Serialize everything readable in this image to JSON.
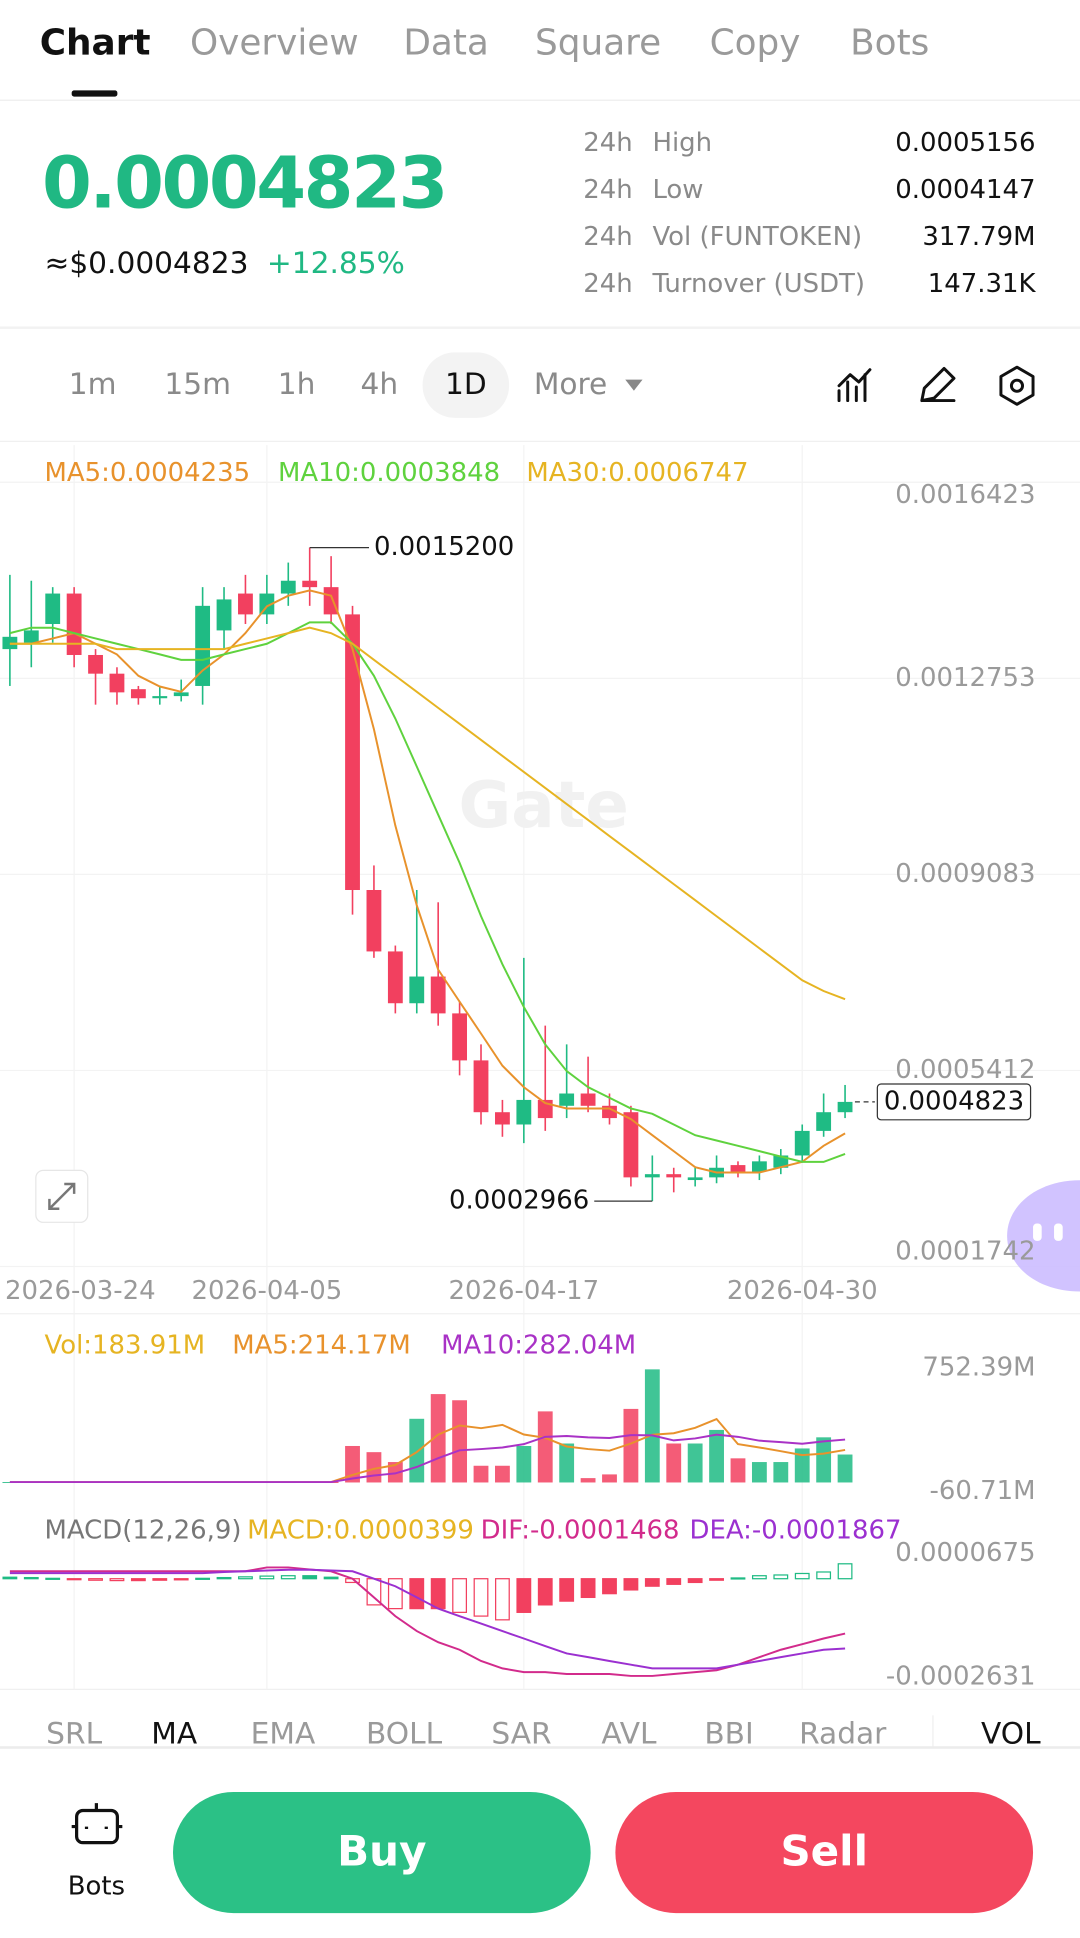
{
  "tabs": [
    "Chart",
    "Overview",
    "Data",
    "Square",
    "Copy",
    "Bots"
  ],
  "ticker": {
    "price": "0.0004823",
    "usd_price": "≈$0.0004823",
    "change": "+12.85%"
  },
  "stats": [
    {
      "period": "24h",
      "label": "High",
      "value": "0.0005156"
    },
    {
      "period": "24h",
      "label": "Low",
      "value": "0.0004147"
    },
    {
      "period": "24h",
      "label": "Vol (FUNTOKEN)",
      "value": "317.79M"
    },
    {
      "period": "24h",
      "label": "Turnover (USDT)",
      "value": "147.31K"
    }
  ],
  "intervals": [
    "1m",
    "15m",
    "1h",
    "4h",
    "1D"
  ],
  "interval_more": "More",
  "watermark": "Gate",
  "indicators": [
    "SRL",
    "MA",
    "EMA",
    "BOLL",
    "SAR",
    "AVL",
    "BBI",
    "Radar",
    "VOL"
  ],
  "bottom": {
    "bots": "Bots",
    "buy": "Buy",
    "sell": "Sell"
  },
  "chart_data": [
    {
      "type": "candlestick",
      "categories": [
        null,
        null,
        null,
        "2026-03-24",
        null,
        null,
        null,
        null,
        null,
        null,
        null,
        null,
        "2026-04-05",
        null,
        null,
        null,
        null,
        null,
        null,
        null,
        null,
        null,
        null,
        null,
        "2026-04-17",
        null,
        null,
        null,
        null,
        null,
        null,
        null,
        null,
        null,
        null,
        null,
        null,
        "2026-04-30",
        null,
        null
      ],
      "open": [
        0.00133,
        0.001342,
        0.001377,
        0.001434,
        0.001319,
        0.001284,
        0.001255,
        0.001238,
        0.001242,
        0.001261,
        0.001365,
        0.001434,
        0.001395,
        0.001434,
        0.001458,
        0.001446,
        0.001395,
        0.000879,
        0.000764,
        0.000667,
        0.000717,
        0.000648,
        0.00056,
        0.000463,
        0.00044,
        0.000486,
        0.000475,
        0.000498,
        0.000475,
        0.000463,
        0.000341,
        0.000347,
        0.000336,
        0.000341,
        0.000364,
        0.000352,
        0.000359,
        0.000382,
        0.000428,
        0.000463
      ],
      "high": [
        0.001469,
        0.001458,
        0.001446,
        0.001446,
        0.00133,
        0.001296,
        0.001261,
        0.001261,
        0.001273,
        0.001446,
        0.001446,
        0.001469,
        0.001469,
        0.001492,
        0.00152,
        0.001504,
        0.001411,
        0.000925,
        0.000775,
        0.000879,
        0.000856,
        0.000671,
        0.00059,
        0.000486,
        0.000752,
        0.000625,
        0.00059,
        0.000567,
        0.000498,
        0.000475,
        0.000382,
        0.000359,
        0.000359,
        0.000382,
        0.000371,
        0.000382,
        0.000394,
        0.00044,
        0.000498,
        0.000514
      ],
      "low": [
        0.001261,
        0.001296,
        0.001342,
        0.001296,
        0.001226,
        0.001226,
        0.001226,
        0.001226,
        0.001232,
        0.001226,
        0.00133,
        0.001377,
        0.001377,
        0.001411,
        0.001411,
        0.001377,
        0.000833,
        0.000752,
        0.000648,
        0.000648,
        0.000625,
        0.000532,
        0.00044,
        0.000417,
        0.000405,
        0.000428,
        0.000452,
        0.000463,
        0.00044,
        0.000324,
        0.0002966,
        0.000313,
        0.000324,
        0.00033,
        0.000341,
        0.000336,
        0.000347,
        0.000371,
        0.000417,
        0.000452
      ],
      "close": [
        0.001353,
        0.001365,
        0.001434,
        0.001319,
        0.001284,
        0.001249,
        0.001238,
        0.001242,
        0.001249,
        0.001411,
        0.001423,
        0.001395,
        0.001434,
        0.001458,
        0.001446,
        0.001395,
        0.000879,
        0.000764,
        0.000667,
        0.000717,
        0.000648,
        0.00056,
        0.000463,
        0.00044,
        0.000486,
        0.000452,
        0.000498,
        0.000475,
        0.000452,
        0.000341,
        0.000347,
        0.000341,
        0.000341,
        0.000359,
        0.000352,
        0.000371,
        0.000382,
        0.000428,
        0.000463,
        0.0004823
      ],
      "up_color": "#1fbb84",
      "down_color": "#f2405f",
      "max_label": "0.0015200",
      "min_label": "0.0002966",
      "last_price_label": "0.0004823",
      "series": [
        {
          "name": "MA5:0.0004235",
          "color": "#e8922c",
          "values": [
            0.00134,
            0.00134,
            0.00135,
            0.00136,
            0.00134,
            0.00132,
            0.00128,
            0.00126,
            0.00125,
            0.00129,
            0.00132,
            0.00136,
            0.00141,
            0.00143,
            0.00144,
            0.00143,
            0.00133,
            0.00118,
            0.001,
            0.00085,
            0.00073,
            0.00067,
            0.00061,
            0.00055,
            0.00051,
            0.00048,
            0.00047,
            0.00047,
            0.00047,
            0.00045,
            0.00042,
            0.00039,
            0.00036,
            0.00035,
            0.00035,
            0.00035,
            0.00036,
            0.00037,
            0.0004,
            0.0004235
          ]
        },
        {
          "name": "MA10:0.0003848",
          "color": "#5fd23e",
          "values": [
            0.00136,
            0.00137,
            0.00137,
            0.00136,
            0.00135,
            0.00134,
            0.00133,
            0.00132,
            0.00131,
            0.00131,
            0.00132,
            0.00133,
            0.00134,
            0.00136,
            0.00138,
            0.00138,
            0.00134,
            0.00128,
            0.0012,
            0.00111,
            0.00102,
            0.00093,
            0.00083,
            0.00074,
            0.00066,
            0.00059,
            0.00054,
            0.00051,
            0.00049,
            0.00047,
            0.00046,
            0.00044,
            0.00042,
            0.00041,
            0.0004,
            0.00039,
            0.00038,
            0.00037,
            0.00037,
            0.0003848
          ]
        },
        {
          "name": "MA30:0.0006747",
          "color": "#e6b422",
          "values": [
            0.00134,
            0.00134,
            0.00134,
            0.00134,
            0.00134,
            0.00133,
            0.00133,
            0.00133,
            0.00133,
            0.00133,
            0.00133,
            0.00134,
            0.00135,
            0.00136,
            0.00137,
            0.00136,
            0.00134,
            0.00131,
            0.00128,
            0.00125,
            0.00122,
            0.00119,
            0.00116,
            0.00113,
            0.0011,
            0.00107,
            0.00104,
            0.00101,
            0.00098,
            0.00095,
            0.00092,
            0.00089,
            0.00086,
            0.00083,
            0.0008,
            0.00077,
            0.00074,
            0.00071,
            0.00069,
            0.0006747
          ]
        }
      ],
      "ylim": [
        0.000162,
        0.001712
      ],
      "yticks": [
        0.0016423,
        0.0012753,
        0.0009083,
        0.0005412,
        0.0001742
      ],
      "grid": true
    },
    {
      "type": "bar",
      "name": "Vol:183.91M",
      "color": "#e6b422",
      "values": [
        3000000,
        3000000,
        3000000,
        3000000,
        3000000,
        3000000,
        3000000,
        3000000,
        3000000,
        3000000,
        3000000,
        3000000,
        3000000,
        3000000,
        3000000,
        3000000,
        240100000,
        199500000,
        134400000,
        419000000,
        581600000,
        541000000,
        110000000,
        110000000,
        240100000,
        467800000,
        256400000,
        28700000,
        53100000,
        484100000,
        744300000,
        256400000,
        256400000,
        345800000,
        158800000,
        134400000,
        134400000,
        223900000,
        297100000,
        183910000
      ],
      "series": [
        {
          "name": "MA5:214.17M",
          "color": "#e8922c",
          "values": [
            3000000,
            3000000,
            3000000,
            3000000,
            3000000,
            3000000,
            3000000,
            3000000,
            3000000,
            3000000,
            3000000,
            3000000,
            3000000,
            3000000,
            3000000,
            3000000,
            50000000,
            90000000,
            115000000,
            200000000,
            315000000,
            375000000,
            357000000,
            379000000,
            316000000,
            294000000,
            237000000,
            220000000,
            209000000,
            256000000,
            314000000,
            324000000,
            360000000,
            417000000,
            252000000,
            230000000,
            206000000,
            180000000,
            190000000,
            214170000
          ]
        },
        {
          "name": "MA10:282.04M",
          "color": "#a932c6",
          "values": [
            3000000,
            3000000,
            3000000,
            3000000,
            3000000,
            3000000,
            3000000,
            3000000,
            3000000,
            3000000,
            3000000,
            3000000,
            3000000,
            3000000,
            3000000,
            3000000,
            26000000,
            46000000,
            60000000,
            102000000,
            160000000,
            212000000,
            220000000,
            230000000,
            252000000,
            300000000,
            306000000,
            297000000,
            293000000,
            312000000,
            310000000,
            277000000,
            290000000,
            315000000,
            300000000,
            275000000,
            265000000,
            255000000,
            270000000,
            282040000
          ]
        }
      ],
      "ylim": [
        -60710000,
        752390000
      ],
      "yticks": [
        {
          "value": 752390000,
          "label": "752.39M"
        },
        {
          "value": -60710000,
          "label": "-60.71M"
        }
      ]
    },
    {
      "type": "macd",
      "title": "MACD(12,26,9)",
      "name": "MACD:0.0000399",
      "color": "#e6b422",
      "values": [
        4e-06,
        3e-06,
        1e-06,
        -2e-06,
        -4e-06,
        -5e-06,
        -5e-06,
        -4e-06,
        -3e-06,
        1e-06,
        3e-06,
        5e-06,
        7e-06,
        8e-06,
        8e-06,
        4e-06,
        -1e-05,
        -7e-05,
        -8e-05,
        -8e-05,
        -8e-05,
        -9e-05,
        -0.0001,
        -0.00011,
        -9e-05,
        -7e-05,
        -6e-05,
        -5e-05,
        -4e-05,
        -3e-05,
        -2e-05,
        -1.5e-05,
        -1e-05,
        -4e-06,
        2e-06,
        8e-06,
        1e-05,
        1.4e-05,
        1.8e-05,
        3.99e-05
      ],
      "series": [
        {
          "name": "DIF:-0.0001468",
          "color": "#d22b8c",
          "values": [
            2e-05,
            2e-05,
            2e-05,
            2e-05,
            2e-05,
            2e-05,
            2e-05,
            2e-05,
            2e-05,
            2e-05,
            2e-05,
            2e-05,
            3e-05,
            3e-05,
            2.5e-05,
            2e-05,
            0,
            -5e-05,
            -0.0001,
            -0.00014,
            -0.00017,
            -0.00019,
            -0.00022,
            -0.00024,
            -0.00025,
            -0.00025,
            -0.000255,
            -0.000255,
            -0.000255,
            -0.00026,
            -0.00026,
            -0.000255,
            -0.00025,
            -0.000245,
            -0.00023,
            -0.00021,
            -0.00019,
            -0.000175,
            -0.00016,
            -0.0001468
          ]
        },
        {
          "name": "DEA:-0.0001867",
          "color": "#9b30d0",
          "values": [
            1.5e-05,
            1.5e-05,
            1.5e-05,
            1.5e-05,
            1.5e-05,
            1.5e-05,
            1.5e-05,
            1.5e-05,
            1.5e-05,
            1.5e-05,
            1.8e-05,
            2e-05,
            2.2e-05,
            2.4e-05,
            2.4e-05,
            2.2e-05,
            2e-05,
            0,
            -2e-05,
            -5e-05,
            -8e-05,
            -0.0001,
            -0.00012,
            -0.00014,
            -0.00016,
            -0.00018,
            -0.0002,
            -0.00021,
            -0.00022,
            -0.00023,
            -0.00024,
            -0.00024,
            -0.00024,
            -0.00024,
            -0.00023,
            -0.00022,
            -0.00021,
            -0.0002,
            -0.00019,
            -0.0001867
          ]
        }
      ],
      "ylim": [
        -0.0002631,
        6.75e-05
      ],
      "yticks": [
        6.75e-05,
        -0.0002631
      ]
    }
  ]
}
